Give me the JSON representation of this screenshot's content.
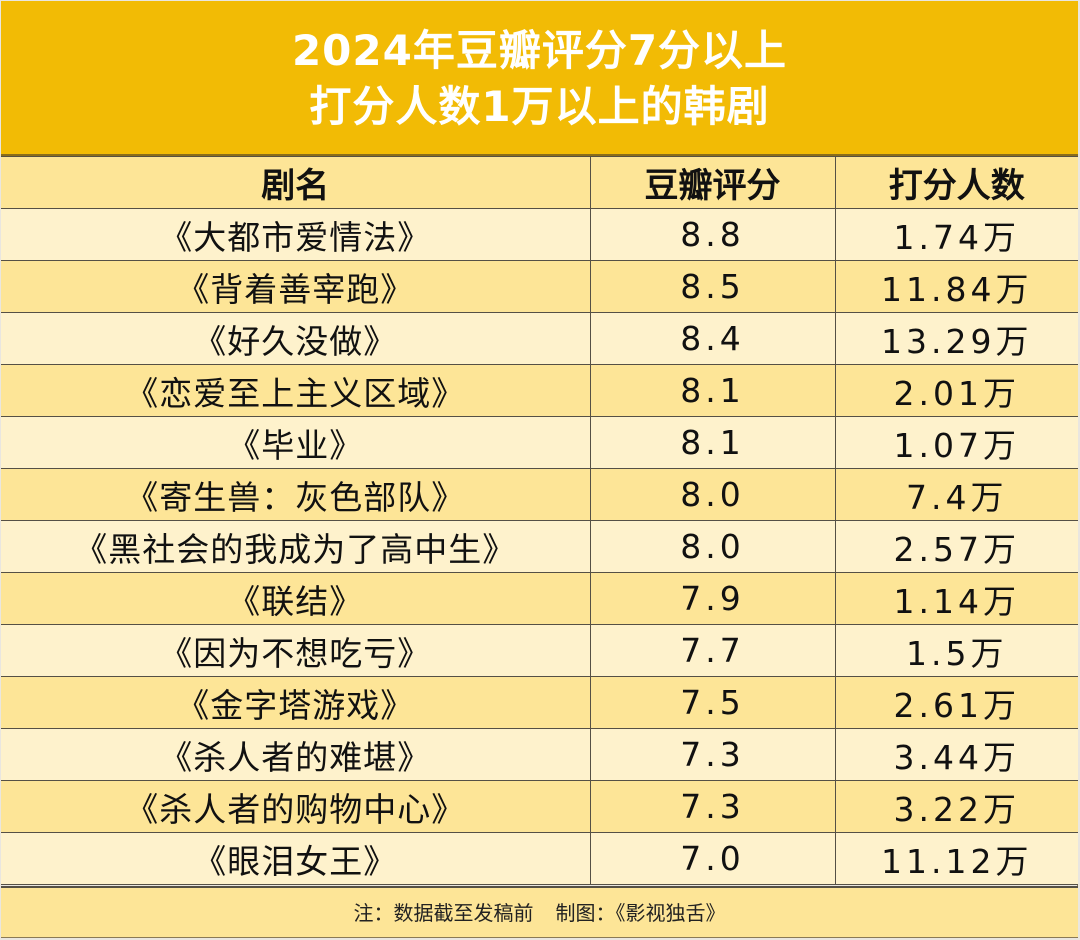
{
  "title": {
    "line1": "2024年豆瓣评分7分以上",
    "line2": "打分人数1万以上的韩剧"
  },
  "table": {
    "headers": [
      "剧名",
      "豆瓣评分",
      "打分人数"
    ],
    "rows": [
      {
        "name": "《大都市爱情法》",
        "score": "8.8",
        "raters": "1.74万"
      },
      {
        "name": "《背着善宰跑》",
        "score": "8.5",
        "raters": "11.84万"
      },
      {
        "name": "《好久没做》",
        "score": "8.4",
        "raters": "13.29万"
      },
      {
        "name": "《恋爱至上主义区域》",
        "score": "8.1",
        "raters": "2.01万"
      },
      {
        "name": "《毕业》",
        "score": "8.1",
        "raters": "1.07万"
      },
      {
        "name": "《寄生兽：灰色部队》",
        "score": "8.0",
        "raters": "7.4万"
      },
      {
        "name": "《黑社会的我成为了高中生》",
        "score": "8.0",
        "raters": "2.57万"
      },
      {
        "name": "《联结》",
        "score": "7.9",
        "raters": "1.14万"
      },
      {
        "name": "《因为不想吃亏》",
        "score": "7.7",
        "raters": "1.5万"
      },
      {
        "name": "《金字塔游戏》",
        "score": "7.5",
        "raters": "2.61万"
      },
      {
        "name": "《杀人者的难堪》",
        "score": "7.3",
        "raters": "3.44万"
      },
      {
        "name": "《杀人者的购物中心》",
        "score": "7.3",
        "raters": "3.22万"
      },
      {
        "name": "《眼泪女王》",
        "score": "7.0",
        "raters": "11.12万"
      }
    ]
  },
  "footer": {
    "note": "注：数据截至发稿前",
    "credit": "制图：《影视独舌》"
  },
  "colors": {
    "title_bg": "#f2bb05",
    "title_text": "#ffffff",
    "header_bg": "#fde597",
    "row_light": "#fef2cc",
    "row_dark": "#fde597",
    "border": "#555045"
  }
}
